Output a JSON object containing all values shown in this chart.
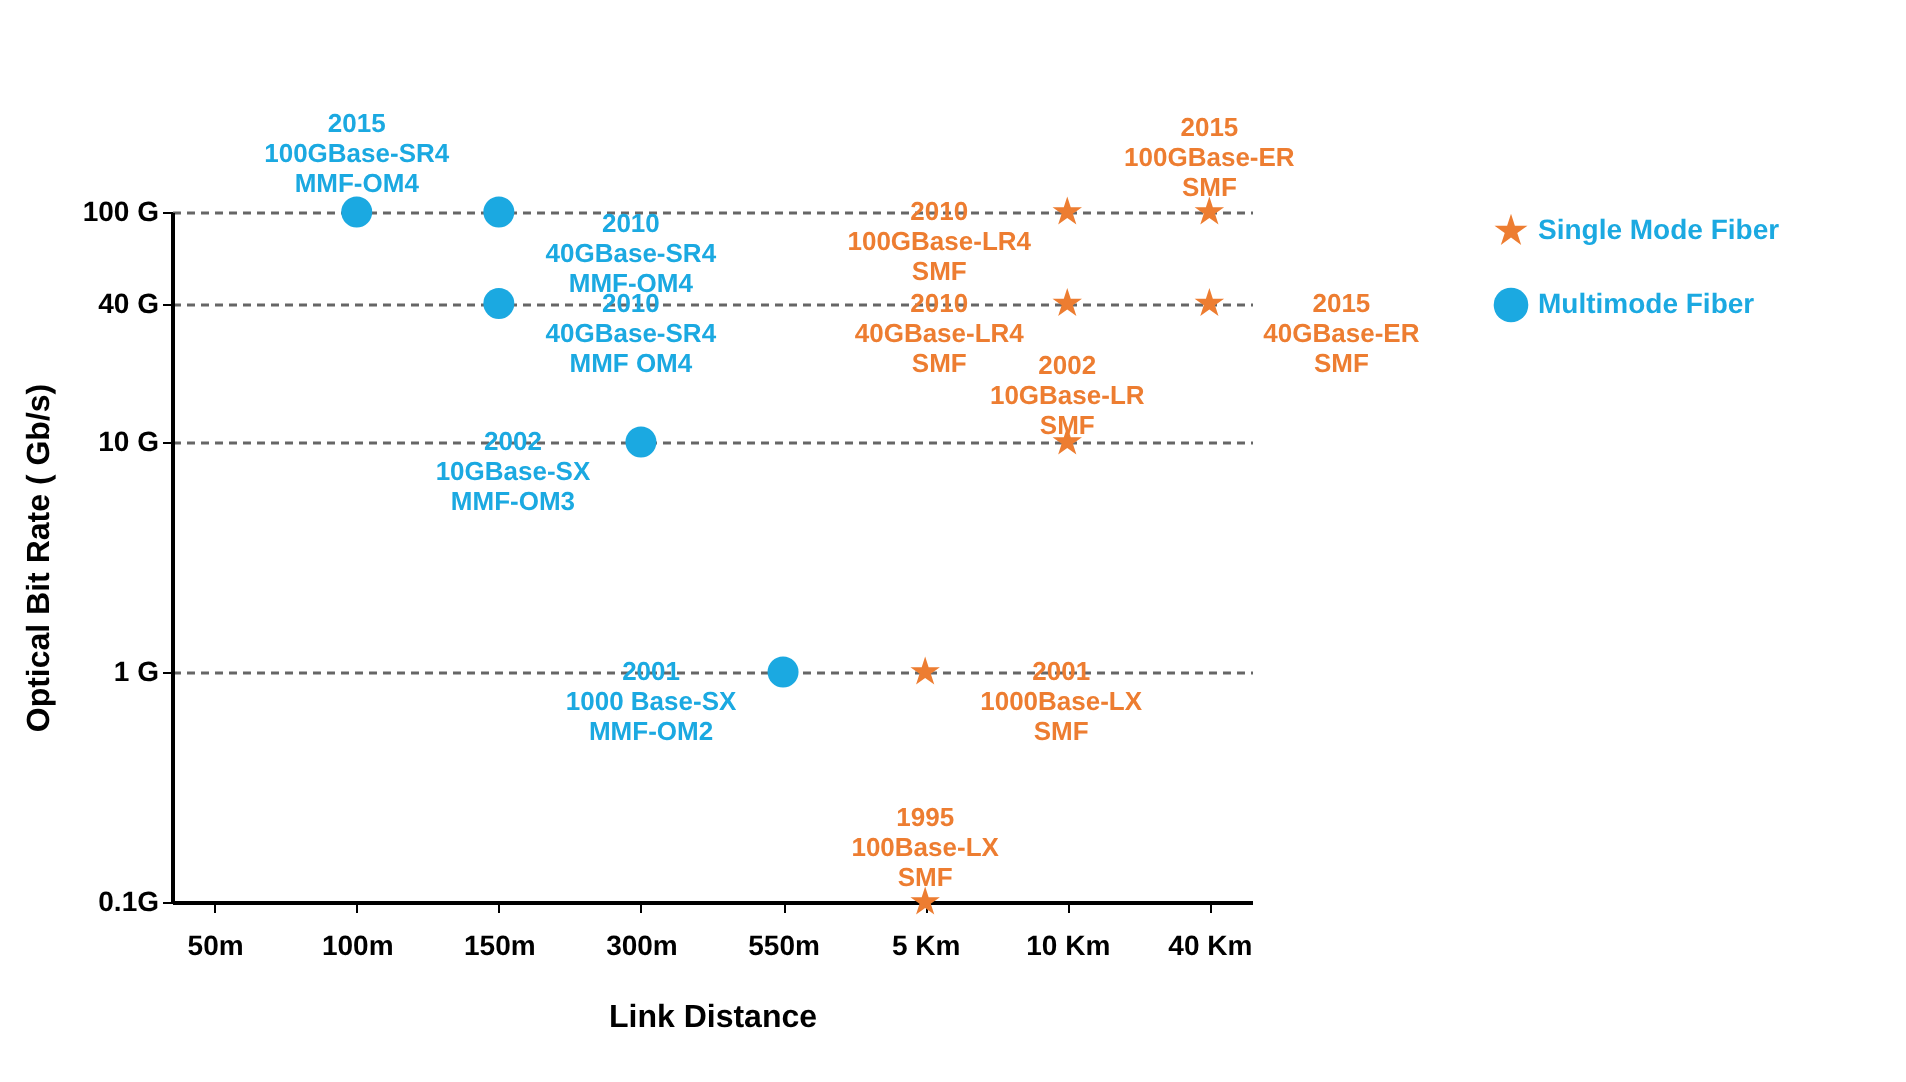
{
  "chart_data": {
    "type": "scatter",
    "xlabel": "Link Distance",
    "ylabel": "Optical Bit Rate ( Gb/s)",
    "categories": [
      "50m",
      "100m",
      "150m",
      "300m",
      "550m",
      "5 Km",
      "10 Km",
      "40 Km"
    ],
    "ylim": [
      0.1,
      100
    ],
    "yticks": [
      {
        "value": 0.1,
        "label": "0.1G"
      },
      {
        "value": 1,
        "label": "1 G"
      },
      {
        "value": 10,
        "label": "10 G"
      },
      {
        "value": 40,
        "label": "40 G"
      },
      {
        "value": 100,
        "label": "100 G"
      }
    ],
    "log": "y",
    "grid": "y",
    "legend": "right",
    "series": [
      {
        "name": "Single Mode Fiber",
        "color": "#ed7d31",
        "marker": "star",
        "x": [
          "5 Km",
          "5 Km",
          "10 Km",
          "40 Km",
          "10 Km",
          "40 Km",
          "10 Km"
        ],
        "values": [
          0.1,
          1,
          100,
          100,
          40,
          40,
          10
        ]
      },
      {
        "name": "Multimode Fiber",
        "color": "#1ba9e1",
        "marker": "circle",
        "x": [
          "100m",
          "150m",
          "150m",
          "300m",
          "550m"
        ],
        "values": [
          100,
          100,
          40,
          10,
          1
        ]
      }
    ],
    "annotations": [
      {
        "text": "2015\n100GBase-SR4\nMMF-OM4",
        "x": "100m",
        "y": 100
      },
      {
        "text": "2010\n40GBase-SR4\nMMF-OM4",
        "x": "150m",
        "y": 100
      },
      {
        "text": "2010\n40GBase-SR4\nMMF OM4",
        "x": "150m",
        "y": 40
      },
      {
        "text": "2002\n10GBase-SX\nMMF-OM3",
        "x": "300m",
        "y": 10
      },
      {
        "text": "2001\n1000 Base-SX\nMMF-OM2",
        "x": "550m",
        "y": 1
      },
      {
        "text": "1995\n100Base-LX\nSMF",
        "x": "5 Km",
        "y": 0.1
      },
      {
        "text": "2001\n1000Base-LX\nSMF",
        "x": "5 Km",
        "y": 1
      },
      {
        "text": "2010\n100GBase-LR4\nSMF",
        "x": "10 Km",
        "y": 100
      },
      {
        "text": "2015\n100GBase-ER\nSMF",
        "x": "40 Km",
        "y": 100
      },
      {
        "text": "2010\n40GBase-LR4\nSMF",
        "x": "10 Km",
        "y": 40
      },
      {
        "text": "2015\n40GBase-ER\nSMF",
        "x": "40 Km",
        "y": 40
      },
      {
        "text": "2002\n10GBase-LR\nSMF",
        "x": "10 Km",
        "y": 10
      }
    ]
  }
}
